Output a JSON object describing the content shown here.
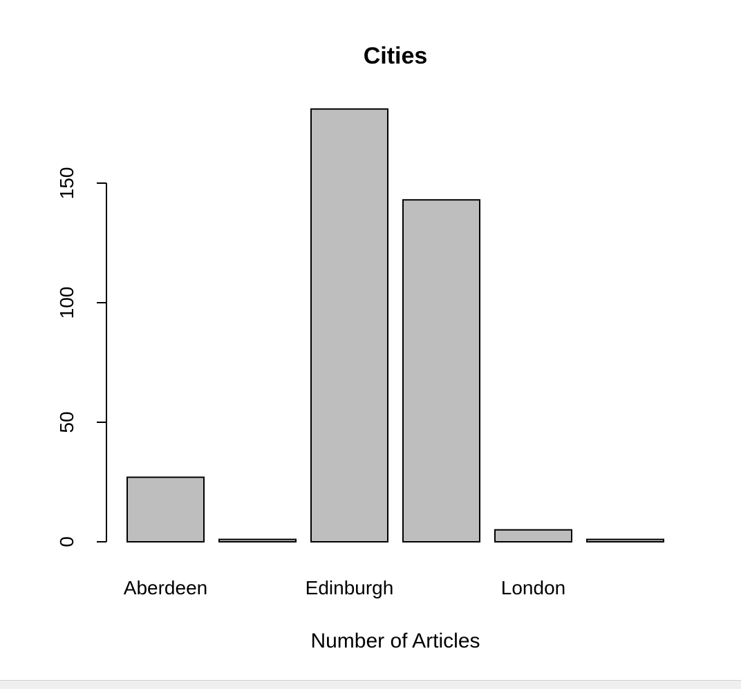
{
  "chart_data": {
    "type": "bar",
    "title": "Cities",
    "xlabel": "Number of Articles",
    "ylabel": "",
    "categories": [
      "Aberdeen",
      "",
      "Edinburgh",
      "",
      "London",
      ""
    ],
    "values": [
      27,
      1,
      181,
      143,
      5,
      1
    ],
    "yticks": [
      0,
      50,
      100,
      150
    ],
    "ylim": [
      0,
      181
    ],
    "grid": false,
    "legend": "none",
    "bar_color": "#bebebe",
    "border_color": "#000000"
  }
}
